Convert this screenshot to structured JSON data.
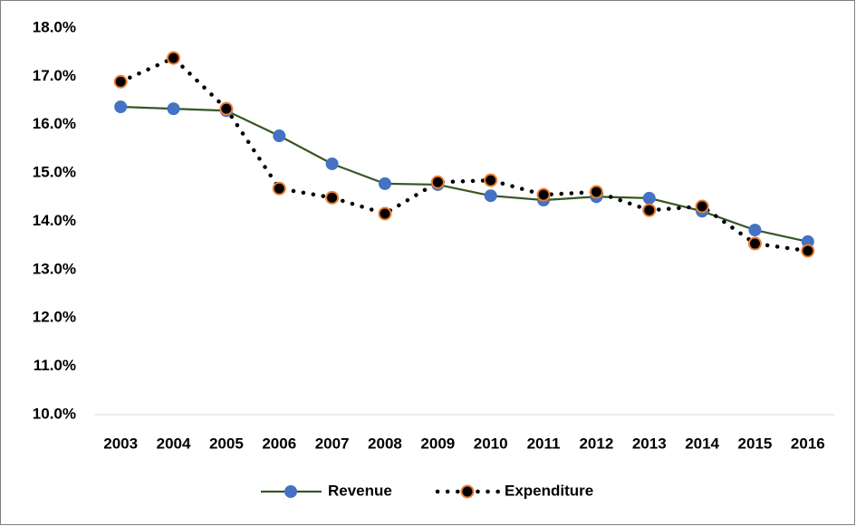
{
  "chart_data": {
    "type": "line",
    "categories": [
      "2003",
      "2004",
      "2005",
      "2006",
      "2007",
      "2008",
      "2009",
      "2010",
      "2011",
      "2012",
      "2013",
      "2014",
      "2015",
      "2016"
    ],
    "series": [
      {
        "name": "Revenue",
        "color": "#4472c4",
        "line_color": "#375623",
        "line_style": "solid",
        "values": [
          16.37,
          16.33,
          16.29,
          15.77,
          15.19,
          14.78,
          14.76,
          14.53,
          14.44,
          14.51,
          14.48,
          14.21,
          13.82,
          13.58
        ]
      },
      {
        "name": "Expenditure",
        "color": "#000000",
        "edge_color": "#ed7d31",
        "line_color": "#000000",
        "line_style": "dotted",
        "values": [
          16.89,
          17.38,
          16.33,
          14.68,
          14.49,
          14.16,
          14.81,
          14.85,
          14.55,
          14.61,
          14.23,
          14.31,
          13.54,
          13.39
        ]
      }
    ],
    "ylim": [
      10,
      18
    ],
    "yticks": [
      {
        "value": 10,
        "label": "10.0%"
      },
      {
        "value": 11,
        "label": "11.0%"
      },
      {
        "value": 12,
        "label": "12.0%"
      },
      {
        "value": 13,
        "label": "13.0%"
      },
      {
        "value": 14,
        "label": "14.0%"
      },
      {
        "value": 15,
        "label": "15.0%"
      },
      {
        "value": 16,
        "label": "16.0%"
      },
      {
        "value": 17,
        "label": "17.0%"
      },
      {
        "value": 18,
        "label": "18.0%"
      }
    ],
    "grid": false,
    "legend": "bottom"
  }
}
